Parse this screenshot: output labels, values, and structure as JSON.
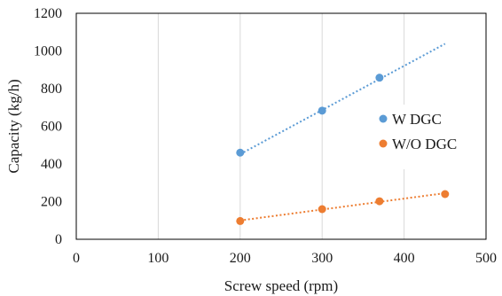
{
  "chart_data": {
    "type": "scatter",
    "title": "",
    "xlabel": "Screw speed (rpm)",
    "ylabel": "Capacity (kg/h)",
    "xlim": [
      0,
      500
    ],
    "ylim": [
      0,
      1200
    ],
    "x_ticks": [
      0,
      100,
      200,
      300,
      400,
      500
    ],
    "y_ticks": [
      0,
      200,
      400,
      600,
      800,
      1000,
      1200
    ],
    "x_tick_labels": [
      "0",
      "100",
      "200",
      "300",
      "400",
      "500"
    ],
    "y_tick_labels": [
      "0",
      "200",
      "400",
      "600",
      "800",
      "1000",
      "1200"
    ],
    "grid": "vertical",
    "legend_position": "right",
    "series": [
      {
        "name": "W DGC",
        "color": "#5b9bd5",
        "x": [
          200,
          300,
          370
        ],
        "y": [
          460,
          683,
          858
        ],
        "trendline": {
          "type": "linear",
          "x": [
            200,
            450
          ],
          "y": [
            452,
            1038
          ]
        }
      },
      {
        "name": "W/O DGC",
        "color": "#ed7d31",
        "x": [
          200,
          300,
          370,
          450
        ],
        "y": [
          97,
          160,
          202,
          240
        ],
        "trendline": {
          "type": "linear",
          "x": [
            200,
            450
          ],
          "y": [
            100,
            245
          ]
        }
      }
    ]
  }
}
